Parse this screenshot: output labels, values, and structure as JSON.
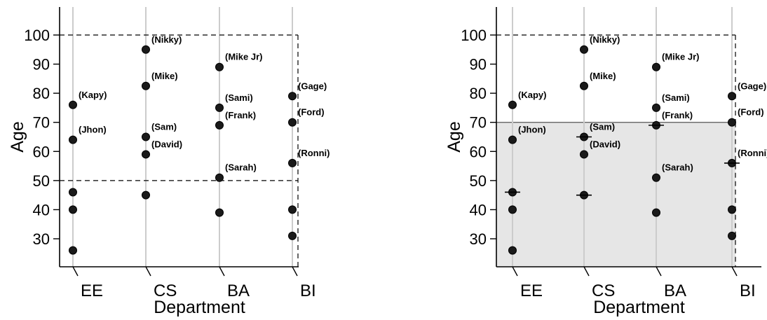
{
  "chart_data": [
    {
      "type": "scatter",
      "title": "",
      "xlabel": "Department",
      "ylabel": "Age",
      "categories": [
        "EE",
        "CS",
        "BA",
        "BI"
      ],
      "yticks": [
        30,
        40,
        50,
        60,
        70,
        80,
        90,
        100
      ],
      "ylim": [
        20,
        108
      ],
      "grid": "vertical",
      "points": [
        {
          "cat": "EE",
          "y": 76,
          "label": "(Kapy)"
        },
        {
          "cat": "EE",
          "y": 64,
          "label": "(Jhon)"
        },
        {
          "cat": "EE",
          "y": 46,
          "label": ""
        },
        {
          "cat": "EE",
          "y": 40,
          "label": ""
        },
        {
          "cat": "EE",
          "y": 26,
          "label": ""
        },
        {
          "cat": "CS",
          "y": 95,
          "label": "(Nikky)"
        },
        {
          "cat": "CS",
          "y": 82.5,
          "label": "(Mike)"
        },
        {
          "cat": "CS",
          "y": 65,
          "label": "(Sam)"
        },
        {
          "cat": "CS",
          "y": 59,
          "label": "(David)"
        },
        {
          "cat": "CS",
          "y": 45,
          "label": ""
        },
        {
          "cat": "BA",
          "y": 89,
          "label": "(Mike Jr)"
        },
        {
          "cat": "BA",
          "y": 75,
          "label": "(Sami)"
        },
        {
          "cat": "BA",
          "y": 69,
          "label": "(Frank)"
        },
        {
          "cat": "BA",
          "y": 51,
          "label": "(Sarah)"
        },
        {
          "cat": "BA",
          "y": 39,
          "label": ""
        },
        {
          "cat": "BI",
          "y": 79,
          "label": "(Gage)"
        },
        {
          "cat": "BI",
          "y": 70,
          "label": "(Ford)"
        },
        {
          "cat": "BI",
          "y": 56,
          "label": "(Ronni)"
        },
        {
          "cat": "BI",
          "y": 40,
          "label": ""
        },
        {
          "cat": "BI",
          "y": 31,
          "label": ""
        }
      ],
      "dashed_lines": [
        100,
        50
      ],
      "shaded_region": null,
      "markers": []
    },
    {
      "type": "scatter",
      "title": "",
      "xlabel": "Department",
      "ylabel": "Age",
      "categories": [
        "EE",
        "CS",
        "BA",
        "BI"
      ],
      "yticks": [
        30,
        40,
        50,
        60,
        70,
        80,
        90,
        100
      ],
      "ylim": [
        20,
        108
      ],
      "grid": "vertical",
      "points": [
        {
          "cat": "EE",
          "y": 76,
          "label": "(Kapy)"
        },
        {
          "cat": "EE",
          "y": 64,
          "label": "(Jhon)"
        },
        {
          "cat": "EE",
          "y": 46,
          "label": ""
        },
        {
          "cat": "EE",
          "y": 40,
          "label": ""
        },
        {
          "cat": "EE",
          "y": 26,
          "label": ""
        },
        {
          "cat": "CS",
          "y": 95,
          "label": "(Nikky)"
        },
        {
          "cat": "CS",
          "y": 82.5,
          "label": "(Mike)"
        },
        {
          "cat": "CS",
          "y": 65,
          "label": "(Sam)"
        },
        {
          "cat": "CS",
          "y": 59,
          "label": "(David)"
        },
        {
          "cat": "CS",
          "y": 45,
          "label": ""
        },
        {
          "cat": "BA",
          "y": 89,
          "label": "(Mike Jr)"
        },
        {
          "cat": "BA",
          "y": 75,
          "label": "(Sami)"
        },
        {
          "cat": "BA",
          "y": 69,
          "label": "(Frank)"
        },
        {
          "cat": "BA",
          "y": 51,
          "label": "(Sarah)"
        },
        {
          "cat": "BA",
          "y": 39,
          "label": ""
        },
        {
          "cat": "BI",
          "y": 79,
          "label": "(Gage)"
        },
        {
          "cat": "BI",
          "y": 70,
          "label": "(Ford)"
        },
        {
          "cat": "BI",
          "y": 56,
          "label": "(Ronni)"
        },
        {
          "cat": "BI",
          "y": 40,
          "label": ""
        },
        {
          "cat": "BI",
          "y": 31,
          "label": ""
        }
      ],
      "dashed_lines": [
        100
      ],
      "shaded_region": {
        "y_max": 70
      },
      "markers": [
        {
          "cat": "EE",
          "y": 46
        },
        {
          "cat": "CS",
          "y": 65
        },
        {
          "cat": "CS",
          "y": 45
        },
        {
          "cat": "BA",
          "y": 69
        },
        {
          "cat": "BI",
          "y": 56
        }
      ]
    }
  ]
}
